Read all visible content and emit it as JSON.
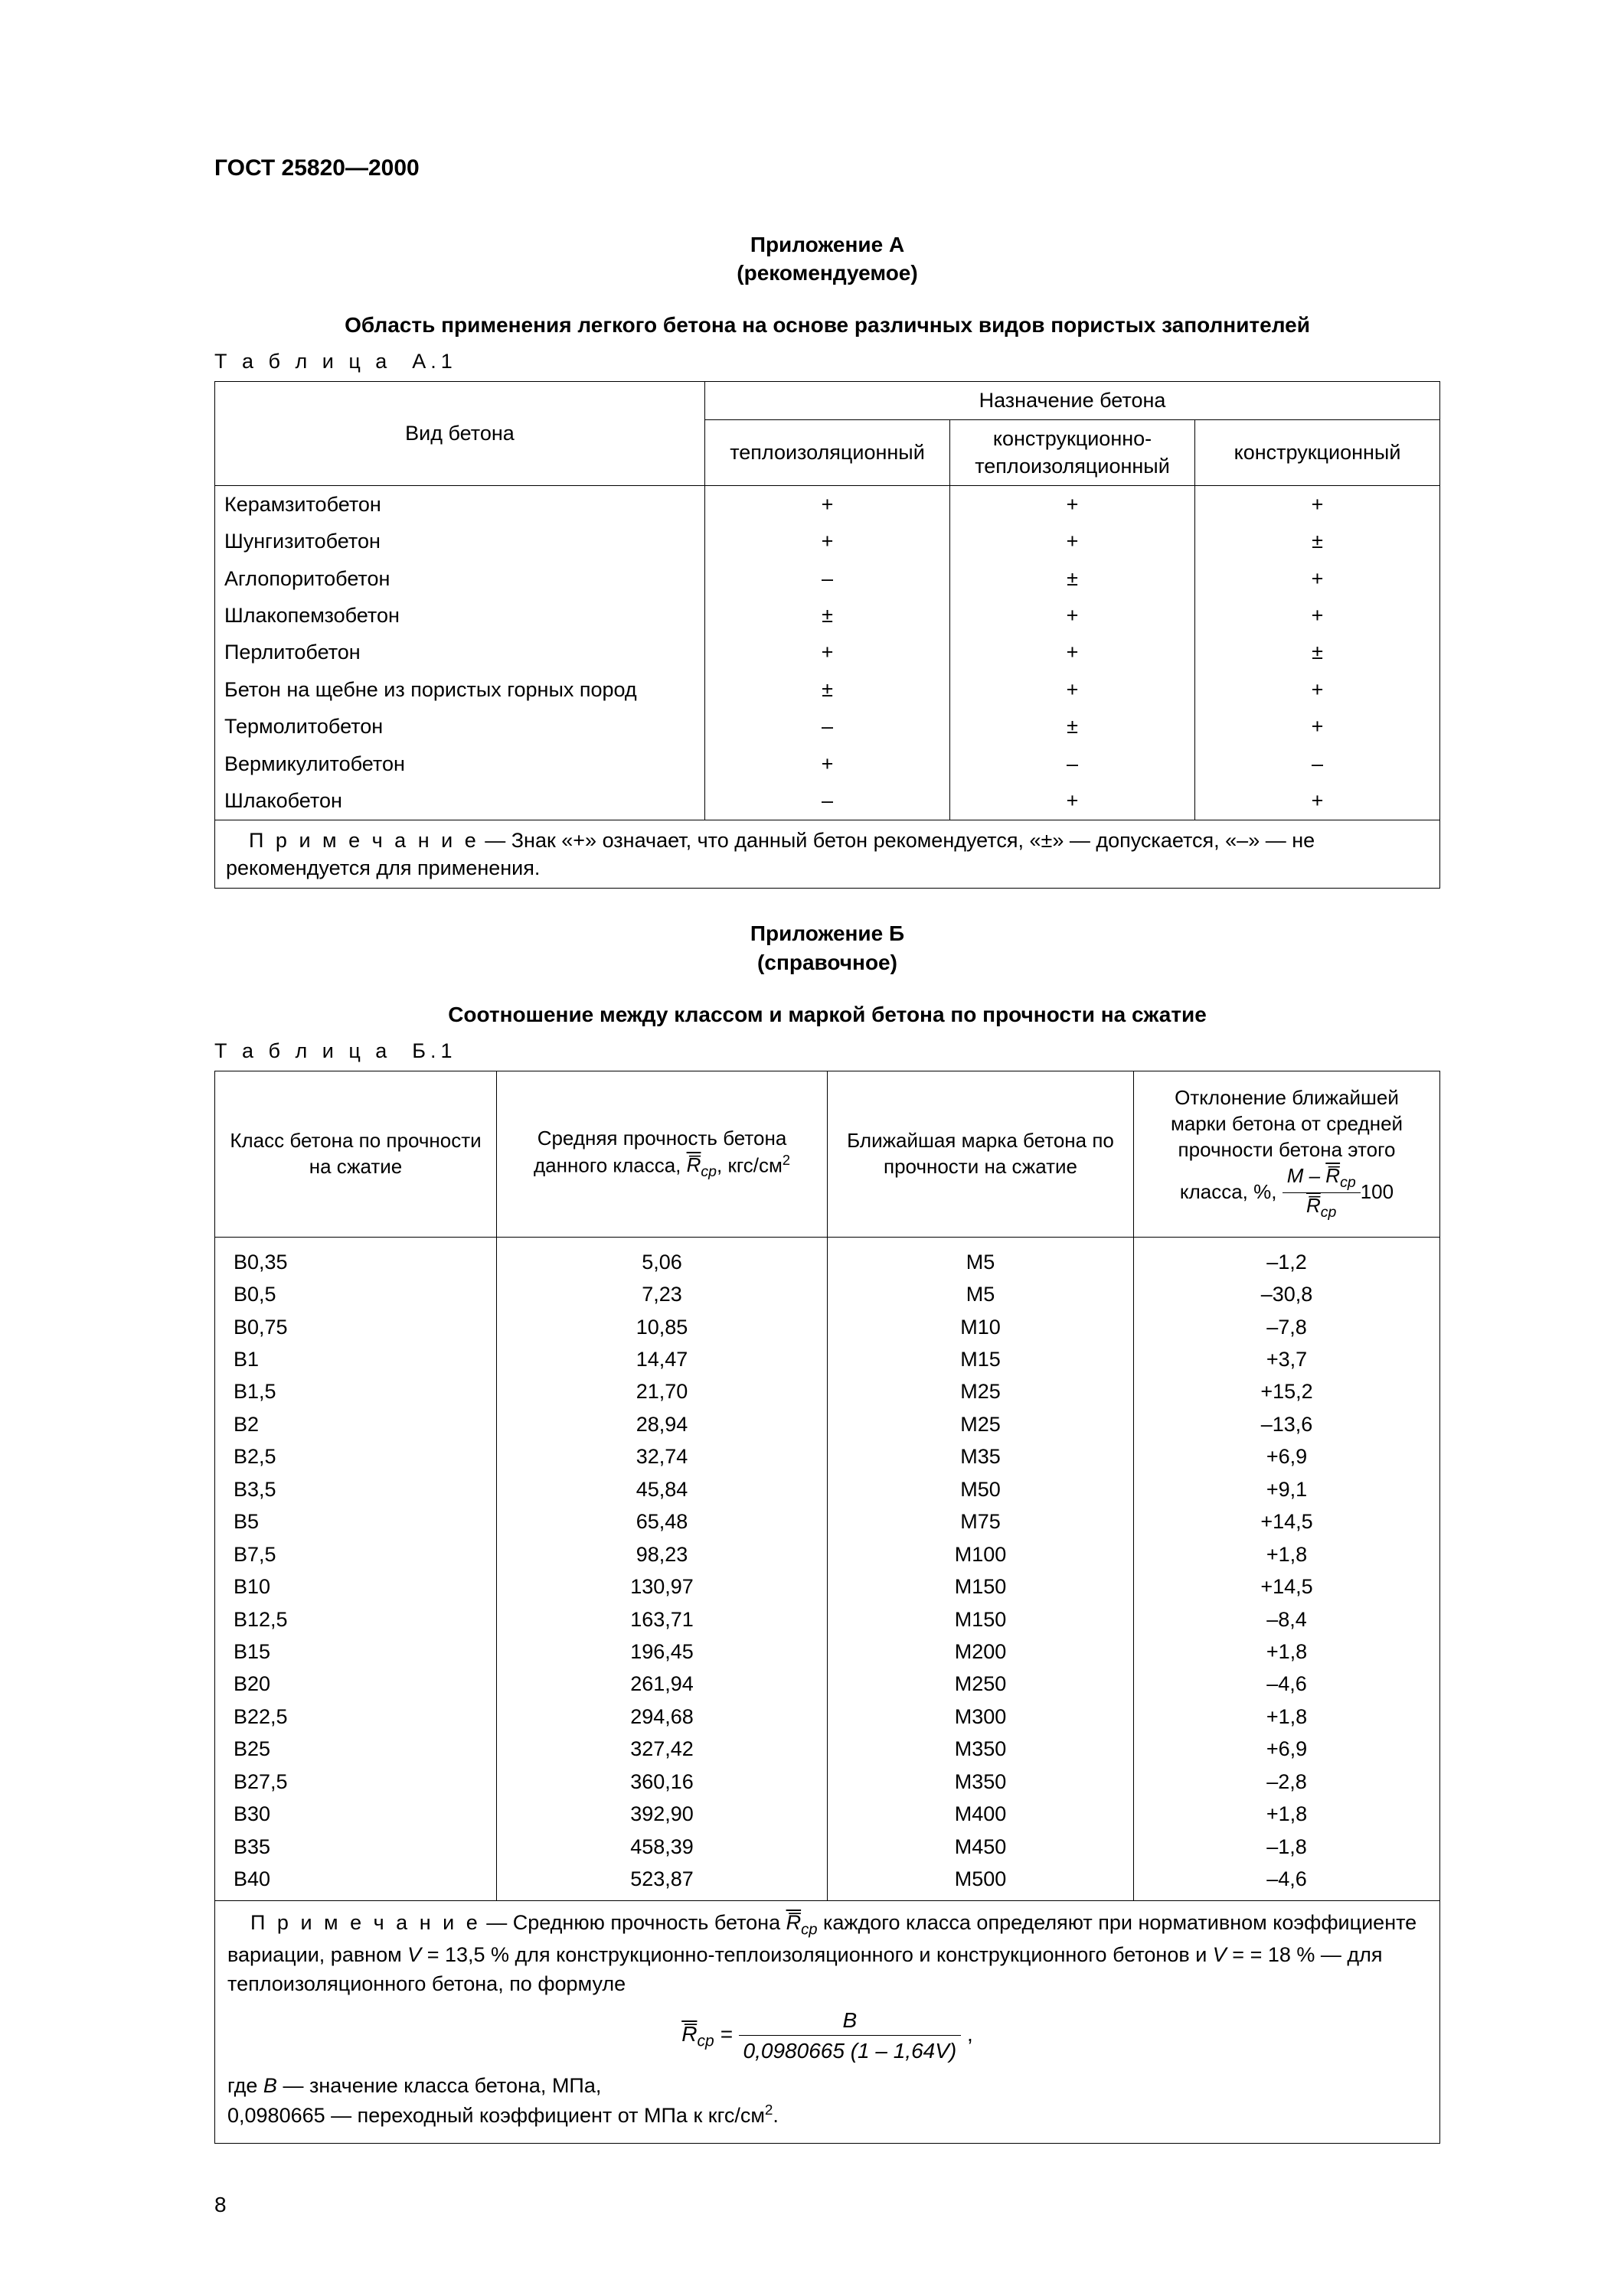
{
  "doc": {
    "standard": "ГОСТ 25820—2000",
    "page_number": "8"
  },
  "appendixA": {
    "title": "Приложение А",
    "subtitle": "(рекомендуемое)",
    "section": "Область применения легкого бетона на основе различных видов пористых заполнителей",
    "table_label": "Т а б л и ц а  А.1",
    "head_col1": "Вид бетона",
    "head_group": "Назначение бетона",
    "head_c2": "теплоизоляционный",
    "head_c3": "конструкционно-теплоизоляционный",
    "head_c4": "конструкционный",
    "rows": [
      {
        "name": "Керамзитобетон",
        "a": "+",
        "b": "+",
        "c": "+"
      },
      {
        "name": "Шунгизитобетон",
        "a": "+",
        "b": "+",
        "c": "±"
      },
      {
        "name": "Аглопоритобетон",
        "a": "–",
        "b": "±",
        "c": "+"
      },
      {
        "name": "Шлакопемзобетон",
        "a": "±",
        "b": "+",
        "c": "+"
      },
      {
        "name": "Перлитобетон",
        "a": "+",
        "b": "+",
        "c": "±"
      },
      {
        "name": "Бетон на щебне из пористых горных пород",
        "a": "±",
        "b": "+",
        "c": "+"
      },
      {
        "name": "Термолитобетон",
        "a": "–",
        "b": "±",
        "c": "+"
      },
      {
        "name": "Вермикулитобетон",
        "a": "+",
        "b": "–",
        "c": "–"
      },
      {
        "name": "Шлакобетон",
        "a": "–",
        "b": "+",
        "c": "+"
      }
    ],
    "note_lead": "П р и м е ч а н и е",
    "note_text": " — Знак «+» означает, что данный бетон рекомендуется, «±» — допускается, «–» — не рекомендуется для применения."
  },
  "appendixB": {
    "title": "Приложение Б",
    "subtitle": "(справочное)",
    "section": "Соотношение между классом и маркой бетона по прочности на сжатие",
    "table_label": "Т а б л и ц а  Б.1",
    "head_c1": "Класс бетона по прочности на сжатие",
    "head_c2_pre": "Средняя прочность бетона данного класса, ",
    "head_c2_sym": "R̅",
    "head_c2_sub": "ср",
    "head_c2_post": ", кгс/см",
    "head_c2_sup": "2",
    "head_c3": "Ближайшая марка бетона по прочности на сжатие",
    "head_c4_pre": "Отклонение ближайшей марки бетона от средней прочности бетона этого класса, %, ",
    "head_c4_num_m": "M",
    "head_c4_minus": " – ",
    "head_c4_r": "R̅",
    "head_c4_sub": "ср",
    "head_c4_den_r": "R̅",
    "head_c4_den_sub": "ср",
    "head_c4_100": "100",
    "rows": [
      {
        "cls": "В0,35",
        "r": "5,06",
        "m": "М5",
        "d": "–1,2"
      },
      {
        "cls": "В0,5",
        "r": "7,23",
        "m": "М5",
        "d": "–30,8"
      },
      {
        "cls": "В0,75",
        "r": "10,85",
        "m": "М10",
        "d": "–7,8"
      },
      {
        "cls": "В1",
        "r": "14,47",
        "m": "М15",
        "d": "+3,7"
      },
      {
        "cls": "В1,5",
        "r": "21,70",
        "m": "М25",
        "d": "+15,2"
      },
      {
        "cls": "В2",
        "r": "28,94",
        "m": "М25",
        "d": "–13,6"
      },
      {
        "cls": "В2,5",
        "r": "32,74",
        "m": "М35",
        "d": "+6,9"
      },
      {
        "cls": "В3,5",
        "r": "45,84",
        "m": "М50",
        "d": "+9,1"
      },
      {
        "cls": "В5",
        "r": "65,48",
        "m": "М75",
        "d": "+14,5"
      },
      {
        "cls": "В7,5",
        "r": "98,23",
        "m": "М100",
        "d": "+1,8"
      },
      {
        "cls": "В10",
        "r": "130,97",
        "m": "М150",
        "d": "+14,5"
      },
      {
        "cls": "В12,5",
        "r": "163,71",
        "m": "М150",
        "d": "–8,4"
      },
      {
        "cls": "В15",
        "r": "196,45",
        "m": "М200",
        "d": "+1,8"
      },
      {
        "cls": "В20",
        "r": "261,94",
        "m": "М250",
        "d": "–4,6"
      },
      {
        "cls": "В22,5",
        "r": "294,68",
        "m": "М300",
        "d": "+1,8"
      },
      {
        "cls": "В25",
        "r": "327,42",
        "m": "М350",
        "d": "+6,9"
      },
      {
        "cls": "В27,5",
        "r": "360,16",
        "m": "М350",
        "d": "–2,8"
      },
      {
        "cls": "В30",
        "r": "392,90",
        "m": "М400",
        "d": "+1,8"
      },
      {
        "cls": "В35",
        "r": "458,39",
        "m": "М450",
        "d": "–1,8"
      },
      {
        "cls": "В40",
        "r": "523,87",
        "m": "М500",
        "d": "–4,6"
      }
    ],
    "note_lead": "П р и м е ч а н и е",
    "note_text1": " — Среднюю прочность бетона ",
    "note_r": "R̅",
    "note_r_sub": "ср",
    "note_text2": " каждого класса определяют при нормативном коэффициенте вариации, равном ",
    "note_v": "V",
    "note_text3": " = 13,5 % для конструкционно-теплоизоляционного и конструкционного бетонов и ",
    "note_v2": "V",
    "note_text4": " = = 18 % — для теплоизоляционного бетона, по формуле",
    "formula_r": "R̅",
    "formula_r_sub": "ср",
    "formula_eq": " = ",
    "formula_num": "B",
    "formula_den_a": "0,0980665",
    "formula_den_b": "(1 – 1,64",
    "formula_den_v": "V",
    "formula_den_c": ")",
    "formula_comma": " ,",
    "where1": "где ",
    "where_b": "B",
    "where2": " — значение класса бетона, МПа,",
    "where3": "0,0980665 — переходный коэффициент от МПа к кгс/см",
    "where3_sup": "2",
    "where4": "."
  }
}
